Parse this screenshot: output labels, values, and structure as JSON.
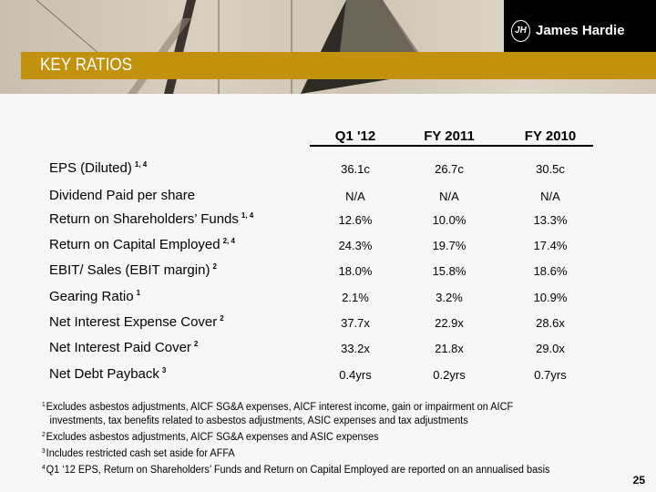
{
  "brand": {
    "name": "James Hardie",
    "monogram": "JH"
  },
  "title": "KEY RATIOS",
  "table": {
    "columns": [
      "Q1 '12",
      "FY 2011",
      "FY 2010"
    ],
    "rows": [
      {
        "label": "EPS (Diluted)",
        "sup": "1, 4",
        "values": [
          "36.1c",
          "26.7c",
          "30.5c"
        ]
      },
      {
        "label": "Dividend Paid per share",
        "sup": "",
        "values": [
          "N/A",
          "N/A",
          "N/A"
        ]
      },
      {
        "label": "Return on Shareholders’ Funds",
        "sup": "1, 4",
        "values": [
          "12.6%",
          "10.0%",
          "13.3%"
        ]
      },
      {
        "label": "Return on Capital Employed",
        "sup": "2, 4",
        "values": [
          "24.3%",
          "19.7%",
          "17.4%"
        ]
      },
      {
        "label": "EBIT/ Sales (EBIT margin)",
        "sup": "2",
        "values": [
          "18.0%",
          "15.8%",
          "18.6%"
        ]
      },
      {
        "label": "Gearing Ratio",
        "sup": "1",
        "values": [
          "2.1%",
          "3.2%",
          "10.9%"
        ]
      },
      {
        "label": "Net Interest Expense Cover",
        "sup": "2",
        "values": [
          "37.7x",
          "22.9x",
          "28.6x"
        ]
      },
      {
        "label": "Net Interest Paid Cover",
        "sup": "2",
        "values": [
          "33.2x",
          "21.8x",
          "29.0x"
        ]
      },
      {
        "label": "Net Debt Payback",
        "sup": "3",
        "values": [
          "0.4yrs",
          "0.2yrs",
          "0.7yrs"
        ]
      }
    ]
  },
  "footnotes": [
    {
      "n": "1",
      "text": "Excludes asbestos adjustments, AICF SG&A expenses, AICF interest income, gain or impairment on AICF",
      "cont": "investments, tax benefits related to asbestos adjustments, ASIC expenses and tax adjustments"
    },
    {
      "n": "2",
      "text": "Excludes asbestos adjustments, AICF SG&A expenses and  ASIC expenses"
    },
    {
      "n": "3",
      "text": "Includes restricted cash set aside for AFFA"
    },
    {
      "n": "4",
      "text": "Q1 ‘12 EPS, Return on Shareholders’ Funds and Return on Capital Employed are reported on an annualised basis"
    }
  ],
  "page_number": "25",
  "colors": {
    "band": "#c2920c",
    "logo_bg": "#000000"
  }
}
